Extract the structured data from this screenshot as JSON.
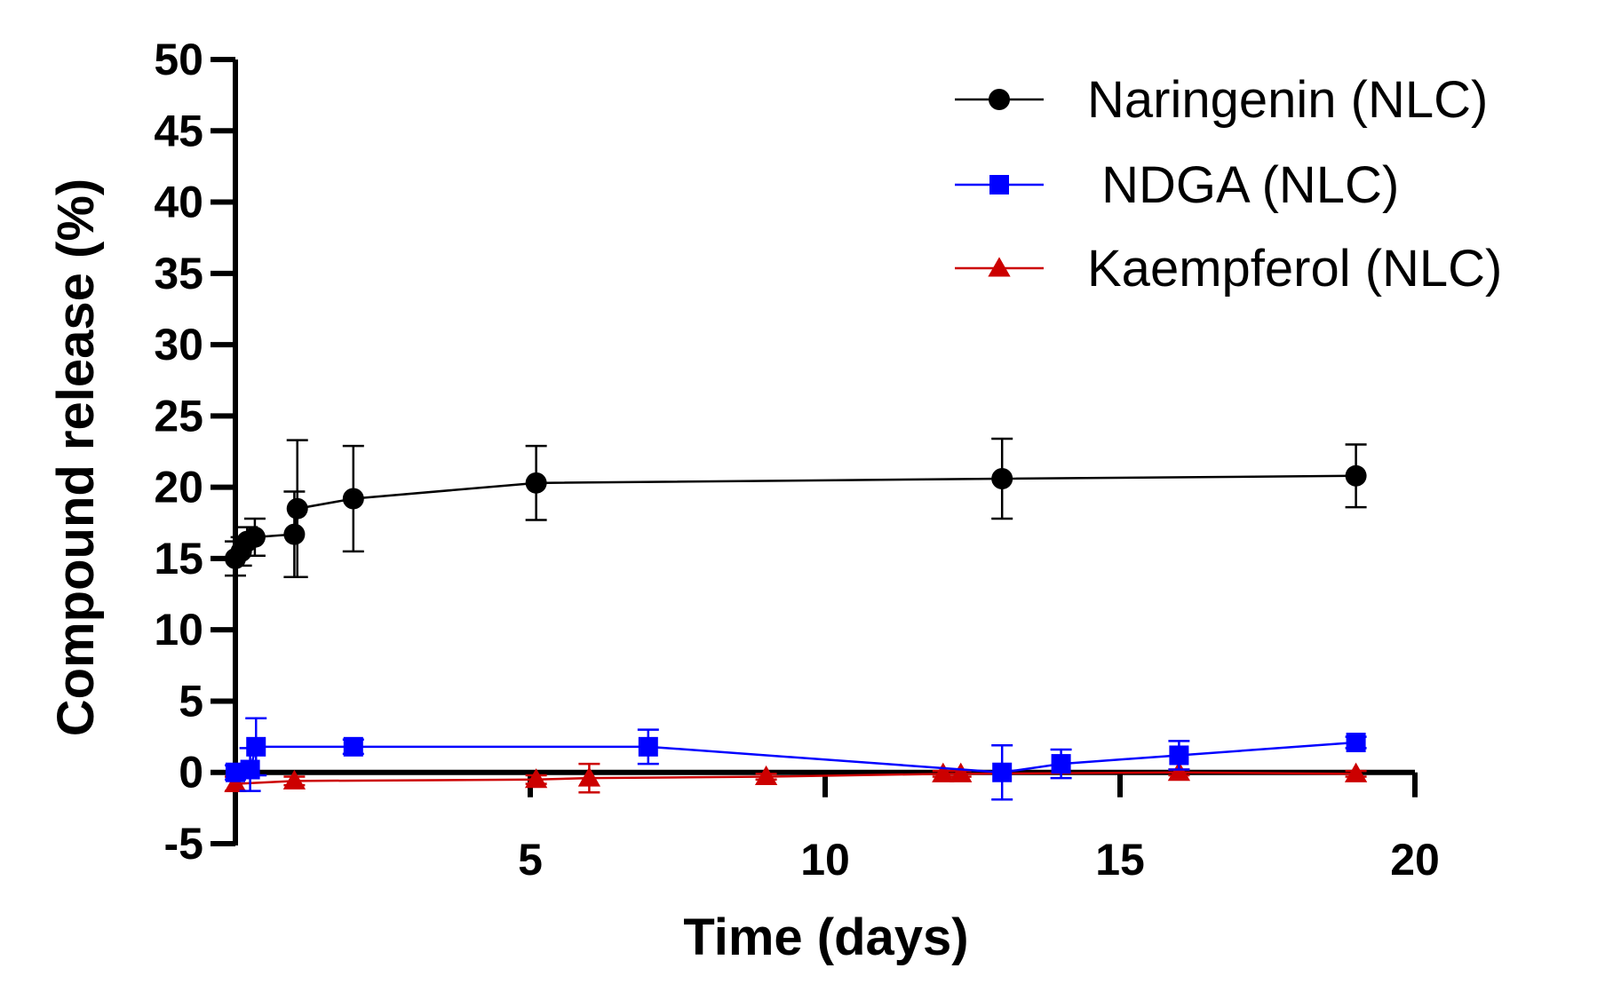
{
  "chart_data": {
    "type": "line",
    "title": "",
    "xlabel": "Time (days)",
    "ylabel": "Compound release (%)",
    "xlim": [
      0,
      20
    ],
    "ylim": [
      -5,
      50
    ],
    "x_ticks": [
      5,
      10,
      15,
      20
    ],
    "x_tick_labels": [
      "5",
      "10",
      "15",
      "20"
    ],
    "y_ticks": [
      -5,
      0,
      5,
      10,
      15,
      20,
      25,
      30,
      35,
      40,
      45,
      50
    ],
    "y_tick_labels": [
      "-5",
      "0",
      "5",
      "10",
      "15",
      "20",
      "25",
      "30",
      "35",
      "40",
      "45",
      "50"
    ],
    "grid": false,
    "legend_position": "top-right",
    "series": [
      {
        "name": "Naringenin (NLC)",
        "color": "#000000",
        "marker": "circle",
        "points": [
          {
            "x": 0,
            "y": 15.0,
            "err": 1.2
          },
          {
            "x": 0.1,
            "y": 15.5,
            "err": 1.0
          },
          {
            "x": 0.2,
            "y": 16.2,
            "err": 1.0
          },
          {
            "x": 0.33,
            "y": 16.5,
            "err": 1.3
          },
          {
            "x": 1.0,
            "y": 16.7,
            "err": 3.0
          },
          {
            "x": 1.05,
            "y": 18.5,
            "err": 4.8
          },
          {
            "x": 2.0,
            "y": 19.2,
            "err": 3.7
          },
          {
            "x": 5.1,
            "y": 20.3,
            "err": 2.6
          },
          {
            "x": 13.0,
            "y": 20.6,
            "err": 2.8
          },
          {
            "x": 19.0,
            "y": 20.8,
            "err": 2.2
          }
        ]
      },
      {
        "name": " NDGA (NLC)",
        "color": "#0000ff",
        "marker": "square",
        "points": [
          {
            "x": 0,
            "y": 0.0,
            "err": 0.5
          },
          {
            "x": 0.25,
            "y": 0.2,
            "err": 1.5
          },
          {
            "x": 0.35,
            "y": 1.8,
            "err": 2.0
          },
          {
            "x": 2.0,
            "y": 1.8,
            "err": 0.5
          },
          {
            "x": 7.0,
            "y": 1.8,
            "err": 1.2
          },
          {
            "x": 13.0,
            "y": 0.0,
            "err": 1.9
          },
          {
            "x": 14.0,
            "y": 0.6,
            "err": 1.0
          },
          {
            "x": 16.0,
            "y": 1.2,
            "err": 1.0
          },
          {
            "x": 19.0,
            "y": 2.1,
            "err": 0.4
          }
        ]
      },
      {
        "name": "Kaempferol (NLC)",
        "color": "#cc0000",
        "marker": "triangle",
        "points": [
          {
            "x": 0,
            "y": -0.8,
            "err": 0.5
          },
          {
            "x": 1.0,
            "y": -0.6,
            "err": 0.3
          },
          {
            "x": 5.1,
            "y": -0.5,
            "err": 0.3
          },
          {
            "x": 6.0,
            "y": -0.4,
            "err": 1.0
          },
          {
            "x": 9.0,
            "y": -0.3,
            "err": 0.2
          },
          {
            "x": 12.0,
            "y": -0.1,
            "err": 0.2
          },
          {
            "x": 12.3,
            "y": -0.1,
            "err": 0.2
          },
          {
            "x": 16.0,
            "y": 0.0,
            "err": 0.2
          },
          {
            "x": 19.0,
            "y": -0.1,
            "err": 0.2
          }
        ]
      }
    ]
  }
}
